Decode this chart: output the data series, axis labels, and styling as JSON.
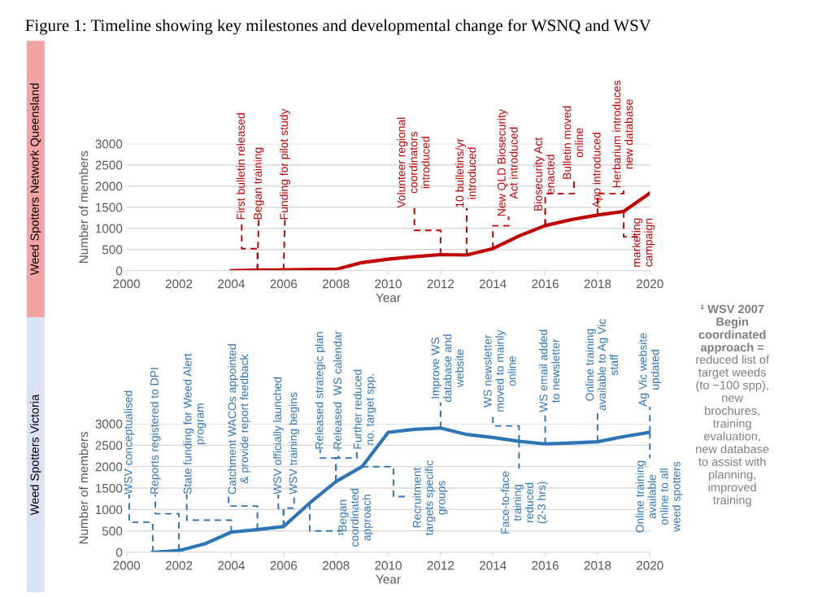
{
  "chart_data": [
    {
      "type": "line",
      "title": "Weed Spotters Network Queensland",
      "xlabel": "Year",
      "ylabel": "Number of members",
      "x": [
        2004,
        2005,
        2006,
        2007,
        2008,
        2009,
        2010,
        2011,
        2012,
        2013,
        2014,
        2015,
        2016,
        2017,
        2018,
        2019,
        2020
      ],
      "series": [
        {
          "color": "#c00000",
          "values": [
            0,
            10,
            15,
            25,
            30,
            190,
            270,
            330,
            380,
            370,
            520,
            820,
            1065,
            1205,
            1315,
            1400,
            1835
          ]
        }
      ],
      "xlim": [
        2000,
        2020
      ],
      "ylim": [
        0,
        3000
      ],
      "xticks": [
        2000,
        2002,
        2004,
        2006,
        2008,
        2010,
        2012,
        2014,
        2016,
        2018,
        2020
      ],
      "yticks": [
        0,
        500,
        1000,
        1500,
        2000,
        2500,
        3000
      ],
      "grid": "y",
      "legend": false,
      "marker": "none",
      "line_style": "solid",
      "annotations": [
        {
          "text": "First bulletin released",
          "x": 2005,
          "y": 10
        },
        {
          "text": "Began training",
          "x": 2005,
          "y": 10
        },
        {
          "text": "Funding for pilot study",
          "x": 2006,
          "y": 15
        },
        {
          "text": "Volunteer regional\ncoordinators\nintroduced",
          "x": 2012,
          "y": 380
        },
        {
          "text": "10 bulletins/yr\nintroduced",
          "x": 2013,
          "y": 370
        },
        {
          "text": "New QLD Biosecurity\nAct introduced",
          "x": 2014,
          "y": 520
        },
        {
          "text": "Biosecurity Act\nenacted",
          "x": 2016,
          "y": 1065
        },
        {
          "text": "Bulletin moved\nonline",
          "x": 2016,
          "y": 1065
        },
        {
          "text": "App introduced",
          "x": 2018,
          "y": 1315
        },
        {
          "text": "Herbarium introduces\nnew database",
          "x": 2018,
          "y": 1315
        },
        {
          "text": "marketing\ncampaign",
          "x": 2019,
          "y": 1400
        },
        "Figure 1: Timeline showing key milestones and developmental change for WSNQ and WSV"
      ]
    },
    {
      "type": "line",
      "title": "Weed Spotters Victoria",
      "xlabel": "Year",
      "ylabel": "Number of members",
      "x": [
        2001,
        2002,
        2003,
        2004,
        2005,
        2006,
        2007,
        2008,
        2009,
        2010,
        2011,
        2012,
        2013,
        2014,
        2015,
        2016,
        2017,
        2018,
        2019,
        2020
      ],
      "series": [
        {
          "color": "#2e75b6",
          "values": [
            0,
            40,
            200,
            470,
            530,
            600,
            1150,
            1650,
            2000,
            2800,
            2870,
            2900,
            2750,
            2680,
            2590,
            2530,
            2550,
            2580,
            2700,
            2800
          ]
        }
      ],
      "xlim": [
        2000,
        2020
      ],
      "ylim": [
        0,
        3000
      ],
      "xticks": [
        2000,
        2002,
        2004,
        2006,
        2008,
        2010,
        2012,
        2014,
        2016,
        2018,
        2020
      ],
      "yticks": [
        0,
        500,
        1000,
        1500,
        2000,
        2500,
        3000
      ],
      "grid": "y",
      "legend": false,
      "marker": "none",
      "line_style": "solid",
      "annotations": [
        {
          "text": "WSV conceptualised",
          "x": 2001,
          "y": 0
        },
        {
          "text": "Reports registered to DPI",
          "x": 2002,
          "y": 40
        },
        {
          "text": "State funding for Weed Alert\nprogram",
          "x": 2004,
          "y": 470
        },
        {
          "text": "Catchment WACOs appointed\n& provide report feedback",
          "x": 2005,
          "y": 530
        },
        {
          "text": "WSV officially launched",
          "x": 2006,
          "y": 600
        },
        {
          "text": "WSV training begins",
          "x": 2006,
          "y": 600
        },
        {
          "text": "Released strategic plan",
          "x": 2008,
          "y": 1650
        },
        {
          "text": "Released  WS calendar",
          "x": 2008,
          "y": 1650
        },
        {
          "text": "Further reduced\nno. target spp.",
          "x": 2008,
          "y": 1650
        },
        {
          "text": "¹Began\ncoordinated\napproach",
          "x": 2007,
          "y": 1150
        },
        {
          "text": "Recruitment\ntargets specific\ngroups",
          "x": 2009,
          "y": 2000
        },
        {
          "text": "Improve WS\ndatabase and\nwebsite",
          "x": 2012,
          "y": 2900
        },
        {
          "text": "WS newsletter\nmoved to mainly\nonline",
          "x": 2015,
          "y": 2590
        },
        {
          "text": "Face-to-face\ntraining\nreduced\n(2-3 hrs)",
          "x": 2015,
          "y": 2590
        },
        {
          "text": "WS email added\nto newsletter",
          "x": 2016,
          "y": 2530
        },
        {
          "text": "Online training\navailable to Ag Vic\nstaff",
          "x": 2018,
          "y": 2580
        },
        {
          "text": "Ag Vic website\nupdated",
          "x": 2020,
          "y": 2800
        },
        {
          "text": "Online training\navailable\nonline to all\nweed spotters",
          "x": 2020,
          "y": 2800
        },
        "¹ WSV 2007\nBegin\ncoordinated\napproach =",
        "reduced list of\ntarget weeds\n(to ~100 spp),\nnew\nbrochures,\ntraining\nevaluation,\nnew database\nto assist with\nplanning,\nimproved\ntraining"
      ]
    }
  ]
}
